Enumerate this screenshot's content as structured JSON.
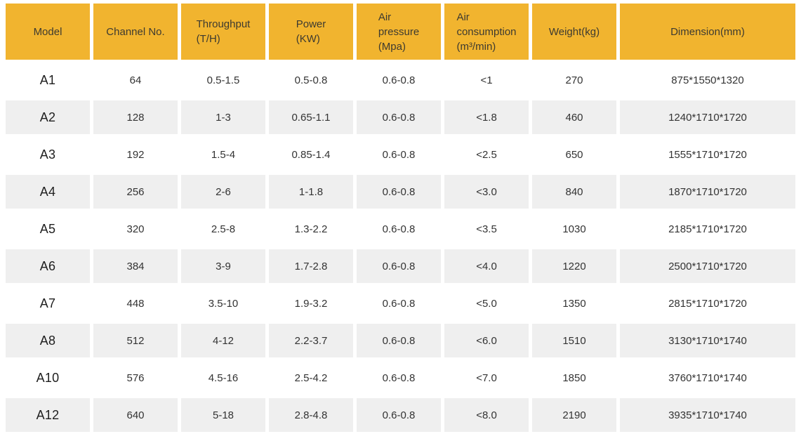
{
  "colors": {
    "header_bg": "#F1B42F",
    "row_alt_bg": "#EFEFEF",
    "header_text": "#3d3a30",
    "cell_text": "#333333"
  },
  "table": {
    "headers": [
      {
        "id": "model",
        "label": "Model"
      },
      {
        "id": "channel-no",
        "label": "Channel No."
      },
      {
        "id": "throughput",
        "label": "Throughput\n(T/H)"
      },
      {
        "id": "power",
        "label": "Power\n(KW)"
      },
      {
        "id": "air-pressure",
        "label": "Air\npressure\n(Mpa)"
      },
      {
        "id": "air-consumption",
        "label": "Air\nconsumption\n(m³/min)"
      },
      {
        "id": "weight",
        "label": "Weight(kg)"
      },
      {
        "id": "dimension",
        "label": "Dimension(mm)"
      }
    ],
    "rows": [
      [
        "A1",
        "64",
        "0.5-1.5",
        "0.5-0.8",
        "0.6-0.8",
        "<1",
        "270",
        "875*1550*1320"
      ],
      [
        "A2",
        "128",
        "1-3",
        "0.65-1.1",
        "0.6-0.8",
        "<1.8",
        "460",
        "1240*1710*1720"
      ],
      [
        "A3",
        "192",
        "1.5-4",
        "0.85-1.4",
        "0.6-0.8",
        "<2.5",
        "650",
        "1555*1710*1720"
      ],
      [
        "A4",
        "256",
        "2-6",
        "1-1.8",
        "0.6-0.8",
        "<3.0",
        "840",
        "1870*1710*1720"
      ],
      [
        "A5",
        "320",
        "2.5-8",
        "1.3-2.2",
        "0.6-0.8",
        "<3.5",
        "1030",
        "2185*1710*1720"
      ],
      [
        "A6",
        "384",
        "3-9",
        "1.7-2.8",
        "0.6-0.8",
        "<4.0",
        "1220",
        "2500*1710*1720"
      ],
      [
        "A7",
        "448",
        "3.5-10",
        "1.9-3.2",
        "0.6-0.8",
        "<5.0",
        "1350",
        "2815*1710*1720"
      ],
      [
        "A8",
        "512",
        "4-12",
        "2.2-3.7",
        "0.6-0.8",
        "<6.0",
        "1510",
        "3130*1710*1740"
      ],
      [
        "A10",
        "576",
        "4.5-16",
        "2.5-4.2",
        "0.6-0.8",
        "<7.0",
        "1850",
        "3760*1710*1740"
      ],
      [
        "A12",
        "640",
        "5-18",
        "2.8-4.8",
        "0.6-0.8",
        "<8.0",
        "2190",
        "3935*1710*1740"
      ]
    ]
  }
}
